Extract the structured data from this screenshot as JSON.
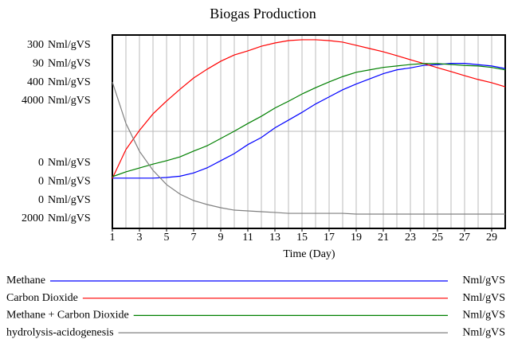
{
  "chart_data": {
    "type": "line",
    "title": "Biogas Production",
    "x_label": "Time (Day)",
    "x": [
      1,
      2,
      3,
      4,
      5,
      6,
      7,
      8,
      9,
      10,
      11,
      12,
      13,
      14,
      15,
      16,
      17,
      18,
      19,
      20,
      21,
      22,
      23,
      24,
      25,
      26,
      27,
      28,
      29,
      30
    ],
    "xlim": [
      1,
      30
    ],
    "xticks": [
      1,
      3,
      5,
      7,
      9,
      11,
      13,
      15,
      17,
      19,
      21,
      23,
      25,
      27,
      29
    ],
    "series": [
      {
        "name": "Methane",
        "color": "#0000ff",
        "unit": "Nml/gVS",
        "ylim": [
          0,
          300
        ],
        "values": [
          78,
          78,
          78,
          78,
          79,
          81,
          86,
          94,
          105,
          116,
          130,
          141,
          156,
          168,
          180,
          193,
          204,
          215,
          224,
          232,
          240,
          246,
          249,
          253,
          254,
          256,
          256,
          254,
          252,
          248
        ]
      },
      {
        "name": "Carbon Dioxide",
        "color": "#ff0000",
        "unit": "Nml/gVS",
        "ylim": [
          0,
          90
        ],
        "values": [
          23.3,
          36.7,
          45.6,
          53.3,
          59.3,
          64.8,
          70,
          74.1,
          77.8,
          80.7,
          82.6,
          84.8,
          86.3,
          87.4,
          87.8,
          87.8,
          87.4,
          86.7,
          85.2,
          83.7,
          82.2,
          80.4,
          78.5,
          76.7,
          74.8,
          73,
          71.1,
          69.3,
          67.8,
          65.9
        ]
      },
      {
        "name": "Methane + Carbon Dioxide",
        "color": "#008000",
        "unit": "Nml/gVS",
        "ylim": [
          0,
          400
        ],
        "values": [
          107,
          117,
          125,
          133,
          140,
          148,
          160,
          171,
          186,
          201,
          217,
          232,
          249,
          263,
          278,
          291,
          303,
          314,
          323,
          328,
          333,
          336,
          339,
          341,
          341,
          339,
          337,
          336,
          333,
          328
        ]
      },
      {
        "name": "hydrolysis-acidogenesis",
        "color": "#808080",
        "unit": "Nml/gVS",
        "ylim": [
          2000,
          4000
        ],
        "values": [
          3514,
          3086,
          2798,
          2601,
          2453,
          2354,
          2288,
          2247,
          2214,
          2189,
          2181,
          2173,
          2165,
          2156,
          2156,
          2156,
          2156,
          2156,
          2148,
          2148,
          2148,
          2148,
          2148,
          2148,
          2148,
          2148,
          2148,
          2148,
          2148,
          2148
        ]
      }
    ]
  }
}
